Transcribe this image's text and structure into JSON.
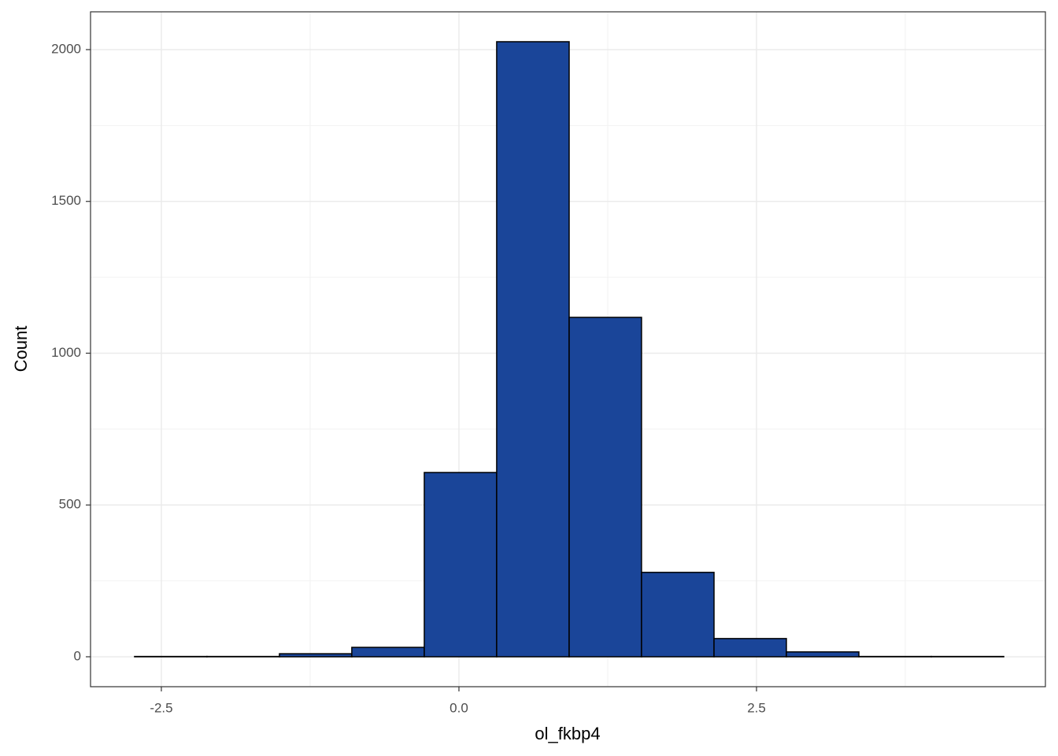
{
  "chart_data": {
    "type": "histogram",
    "x_label": "ol_fkbp4",
    "y_label": "Count",
    "bins": [
      -2.725,
      -2.117,
      -1.508,
      -0.9,
      -0.291,
      0.317,
      0.926,
      1.534,
      2.143,
      2.751,
      3.36,
      3.968,
      4.577
    ],
    "values": [
      1,
      1,
      10,
      31,
      607,
      2026,
      1118,
      278,
      60,
      16,
      1,
      1
    ],
    "color": "#1a4599",
    "edge_color": "#000000",
    "xlim": [
      -3.095,
      4.927
    ],
    "ylim": [
      -98.6,
      2124.5
    ],
    "xticks": [
      -2.5,
      {
        "value": 0,
        "label": "0.0"
      },
      2.5
    ],
    "yticks": [
      0,
      500,
      1000,
      1500,
      2000
    ],
    "grid": true
  }
}
